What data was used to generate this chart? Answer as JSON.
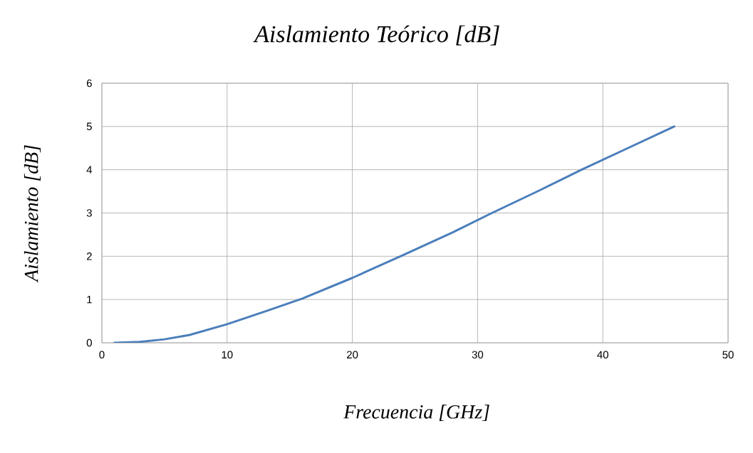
{
  "chart_data": {
    "type": "line",
    "title": "Aislamiento Teórico [dB]",
    "xlabel": "Frecuencia [GHz]",
    "ylabel": "Aislamiento [dB]",
    "x": [
      1,
      3,
      5,
      7,
      10,
      13,
      16,
      20,
      24,
      28,
      31,
      35,
      38.3,
      42,
      45.7
    ],
    "series": [
      {
        "color": "#4a7ebb",
        "values": [
          0,
          0.02,
          0.08,
          0.18,
          0.43,
          0.72,
          1.02,
          1.5,
          2.02,
          2.55,
          2.98,
          3.53,
          4.0,
          4.5,
          5.0
        ]
      }
    ],
    "xlim": [
      0,
      50
    ],
    "ylim": [
      0,
      6
    ],
    "xticks": [
      0,
      10,
      20,
      30,
      40,
      50
    ],
    "yticks": [
      0,
      1,
      2,
      3,
      4,
      5,
      6
    ],
    "grid": true,
    "marker": "none",
    "line_style": "solid"
  }
}
